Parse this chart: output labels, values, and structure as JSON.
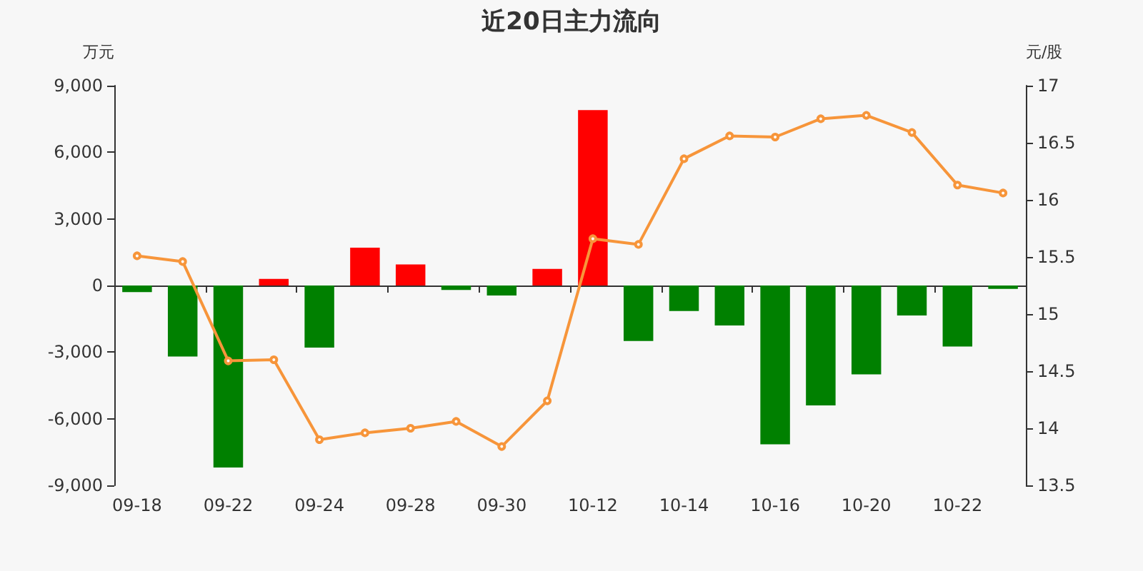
{
  "chart_data": {
    "type": "bar",
    "title": "近20日主力流向",
    "ylabel": "万元",
    "y2label": "元/股",
    "categories": [
      "09-18",
      null,
      "09-22",
      null,
      "09-24",
      null,
      "09-28",
      null,
      "09-30",
      null,
      "10-12",
      null,
      "10-14",
      null,
      "10-16",
      null,
      "10-20",
      null,
      "10-22",
      null
    ],
    "series": [
      {
        "colors": [
          "#008000",
          "#008000",
          "#008000",
          "#ff0000",
          "#008000",
          "#ff0000",
          "#ff0000",
          "#008000",
          "#008000",
          "#ff0000",
          "#ff0000",
          "#008000",
          "#008000",
          "#008000",
          "#008000",
          "#008000",
          "#008000",
          "#008000",
          "#008000",
          "#008000"
        ],
        "values": [
          -300,
          -3200,
          -8200,
          300,
          -2800,
          1700,
          950,
          -200,
          -450,
          750,
          7900,
          -2500,
          -1150,
          -1800,
          -7150,
          -5400,
          -4000,
          -1350,
          -2750,
          -150
        ]
      },
      {
        "type": "line",
        "axis": "y2",
        "color": "#f7953a",
        "marker": "circle",
        "values": [
          15.51,
          15.46,
          14.59,
          14.6,
          13.9,
          13.96,
          14.0,
          14.06,
          13.84,
          14.24,
          15.66,
          15.61,
          16.36,
          16.56,
          16.55,
          16.71,
          16.74,
          16.59,
          16.13,
          16.06
        ]
      }
    ],
    "ylim": [
      -9000,
      9000
    ],
    "yticks": [
      {
        "value": -9000,
        "label": "-9,000"
      },
      {
        "value": -6000,
        "label": "-6,000"
      },
      {
        "value": -3000,
        "label": "-3,000"
      },
      0,
      {
        "value": 3000,
        "label": "3,000"
      },
      {
        "value": 6000,
        "label": "6,000"
      },
      {
        "value": 9000,
        "label": "9,000"
      }
    ],
    "y2lim": [
      13.5,
      17
    ],
    "y2ticks": [
      13.5,
      14,
      14.5,
      15,
      15.5,
      16,
      16.5,
      17
    ]
  }
}
